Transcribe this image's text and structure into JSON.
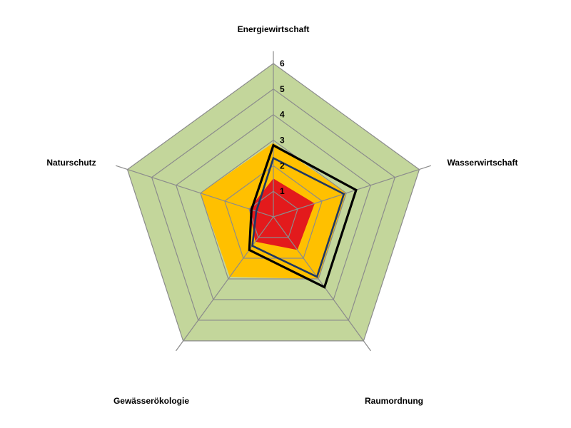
{
  "chart_data": {
    "type": "radar",
    "axes": [
      "Energiewirtschaft",
      "Wasserwirtschaft",
      "Raumordnung",
      "Gewässerökologie",
      "Naturschutz"
    ],
    "ticks": [
      "1",
      "2",
      "3",
      "4",
      "5",
      "6"
    ],
    "rmax": 6,
    "grid": true,
    "series": [
      {
        "kind": "area",
        "color": "#c3d69b",
        "values": [
          6,
          6,
          6,
          6,
          6
        ]
      },
      {
        "kind": "area",
        "color": "#ffc000",
        "values": [
          2.9,
          3.0,
          3.0,
          2.9,
          3.0
        ]
      },
      {
        "kind": "area",
        "color": "#e31a1c",
        "values": [
          1.5,
          1.7,
          1.6,
          1.2,
          1.0
        ]
      },
      {
        "kind": "line",
        "color": "#000000",
        "values": [
          2.8,
          3.4,
          3.4,
          1.6,
          0.9
        ]
      },
      {
        "kind": "line",
        "color": "#1f3864",
        "values": [
          2.3,
          2.9,
          2.9,
          1.4,
          0.7
        ]
      }
    ]
  }
}
